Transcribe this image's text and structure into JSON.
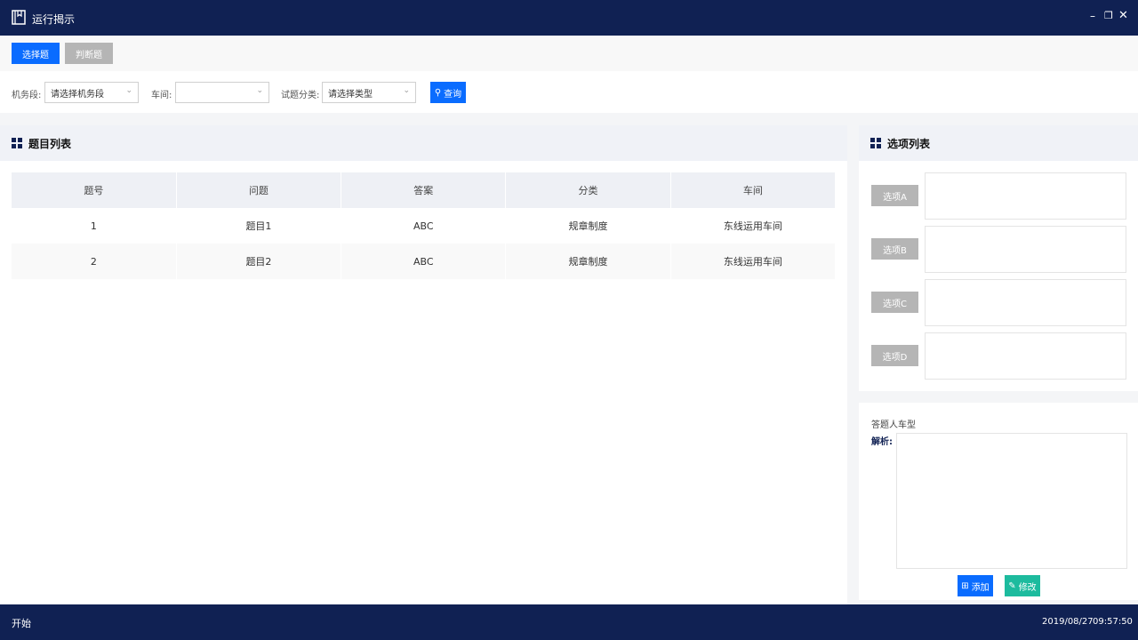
{
  "window": {
    "title": "运行揭示",
    "icon": "book-icon"
  },
  "tabs": [
    {
      "label": "选择题",
      "active": true
    },
    {
      "label": "判断题",
      "active": false
    }
  ],
  "filters": {
    "depot_label": "机务段:",
    "depot_value": "请选择机务段",
    "workshop_label": "车间:",
    "workshop_value": "",
    "category_label": "试题分类:",
    "category_value": "请选择类型",
    "query_label": "查询"
  },
  "question_list": {
    "title": "题目列表",
    "columns": [
      "题号",
      "问题",
      "答案",
      "分类",
      "车间"
    ],
    "rows": [
      [
        "1",
        "题目1",
        "ABC",
        "规章制度",
        "东线运用车间"
      ],
      [
        "2",
        "题目2",
        "ABC",
        "规章制度",
        "东线运用车间"
      ]
    ]
  },
  "options_list": {
    "title": "选项列表",
    "options": [
      {
        "label": "选项A",
        "value": ""
      },
      {
        "label": "选项B",
        "value": ""
      },
      {
        "label": "选项C",
        "value": ""
      },
      {
        "label": "选项D",
        "value": ""
      }
    ]
  },
  "detail": {
    "vehicle_type_label": "答题人车型",
    "analysis_label": "解析:",
    "analysis_value": "",
    "add_label": "添加",
    "edit_label": "修改"
  },
  "taskbar": {
    "start_label": "开始",
    "date": "2019/08/27",
    "time": "09:57:50"
  },
  "colors": {
    "primary": "#0a6cff",
    "teal": "#1dbb9e",
    "navy": "#102153",
    "disabled": "#b5b5b5"
  }
}
